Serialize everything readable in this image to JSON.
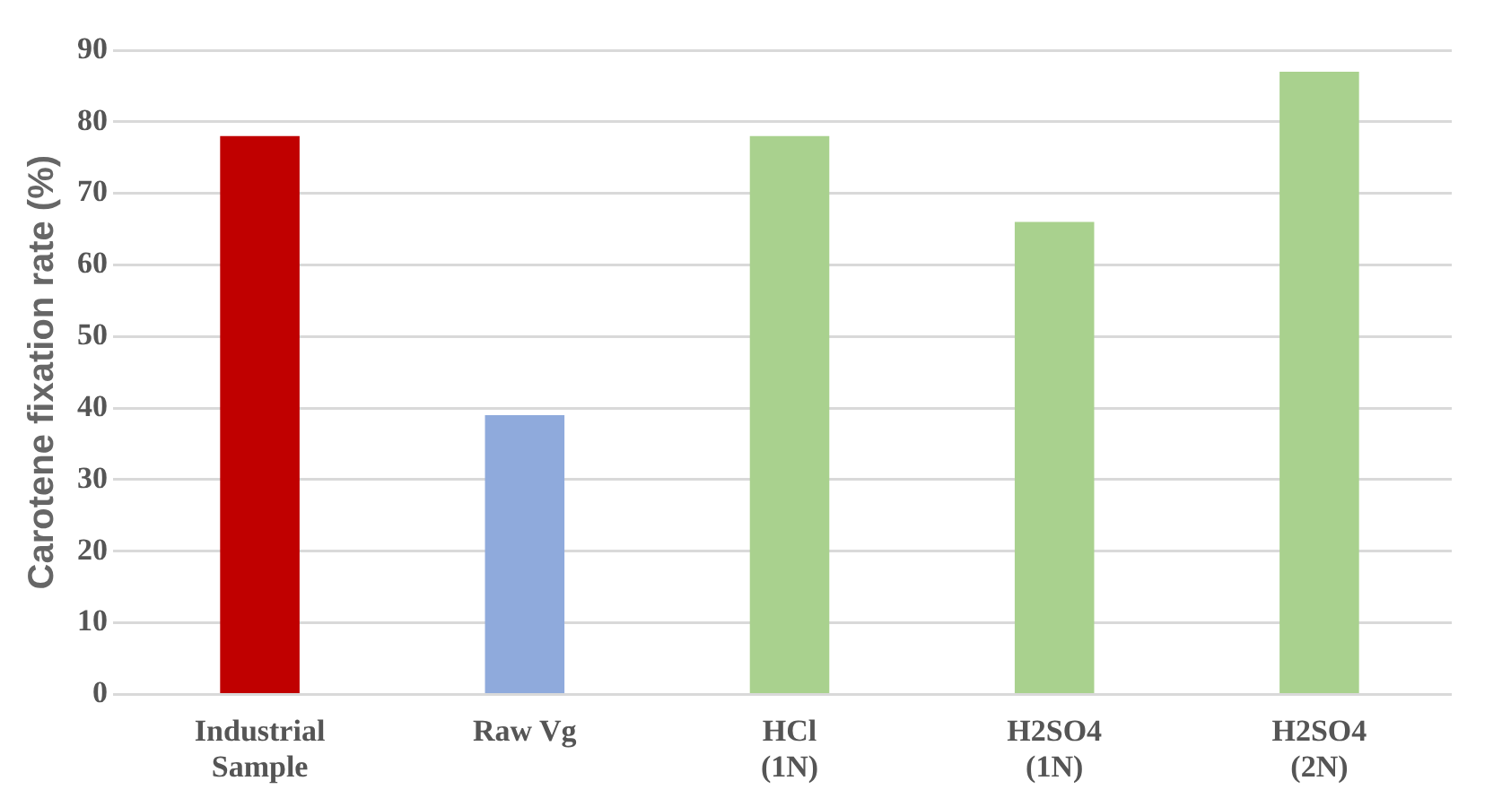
{
  "chart_data": {
    "type": "bar",
    "ylabel": "Carotene fixation rate (%)",
    "categories": [
      "Industrial\nSample",
      "Raw Vg",
      "HCl\n(1N)",
      "H2SO4\n(1N)",
      "H2SO4\n(2N)"
    ],
    "values": [
      78,
      39,
      78,
      66,
      87
    ],
    "colors": [
      "#c00000",
      "#8faadc",
      "#a9d18e",
      "#a9d18e",
      "#a9d18e"
    ],
    "ylim": [
      0,
      90
    ],
    "yticks": [
      0,
      10,
      20,
      30,
      40,
      50,
      60,
      70,
      80,
      90
    ],
    "grid": "y",
    "legend": false
  }
}
